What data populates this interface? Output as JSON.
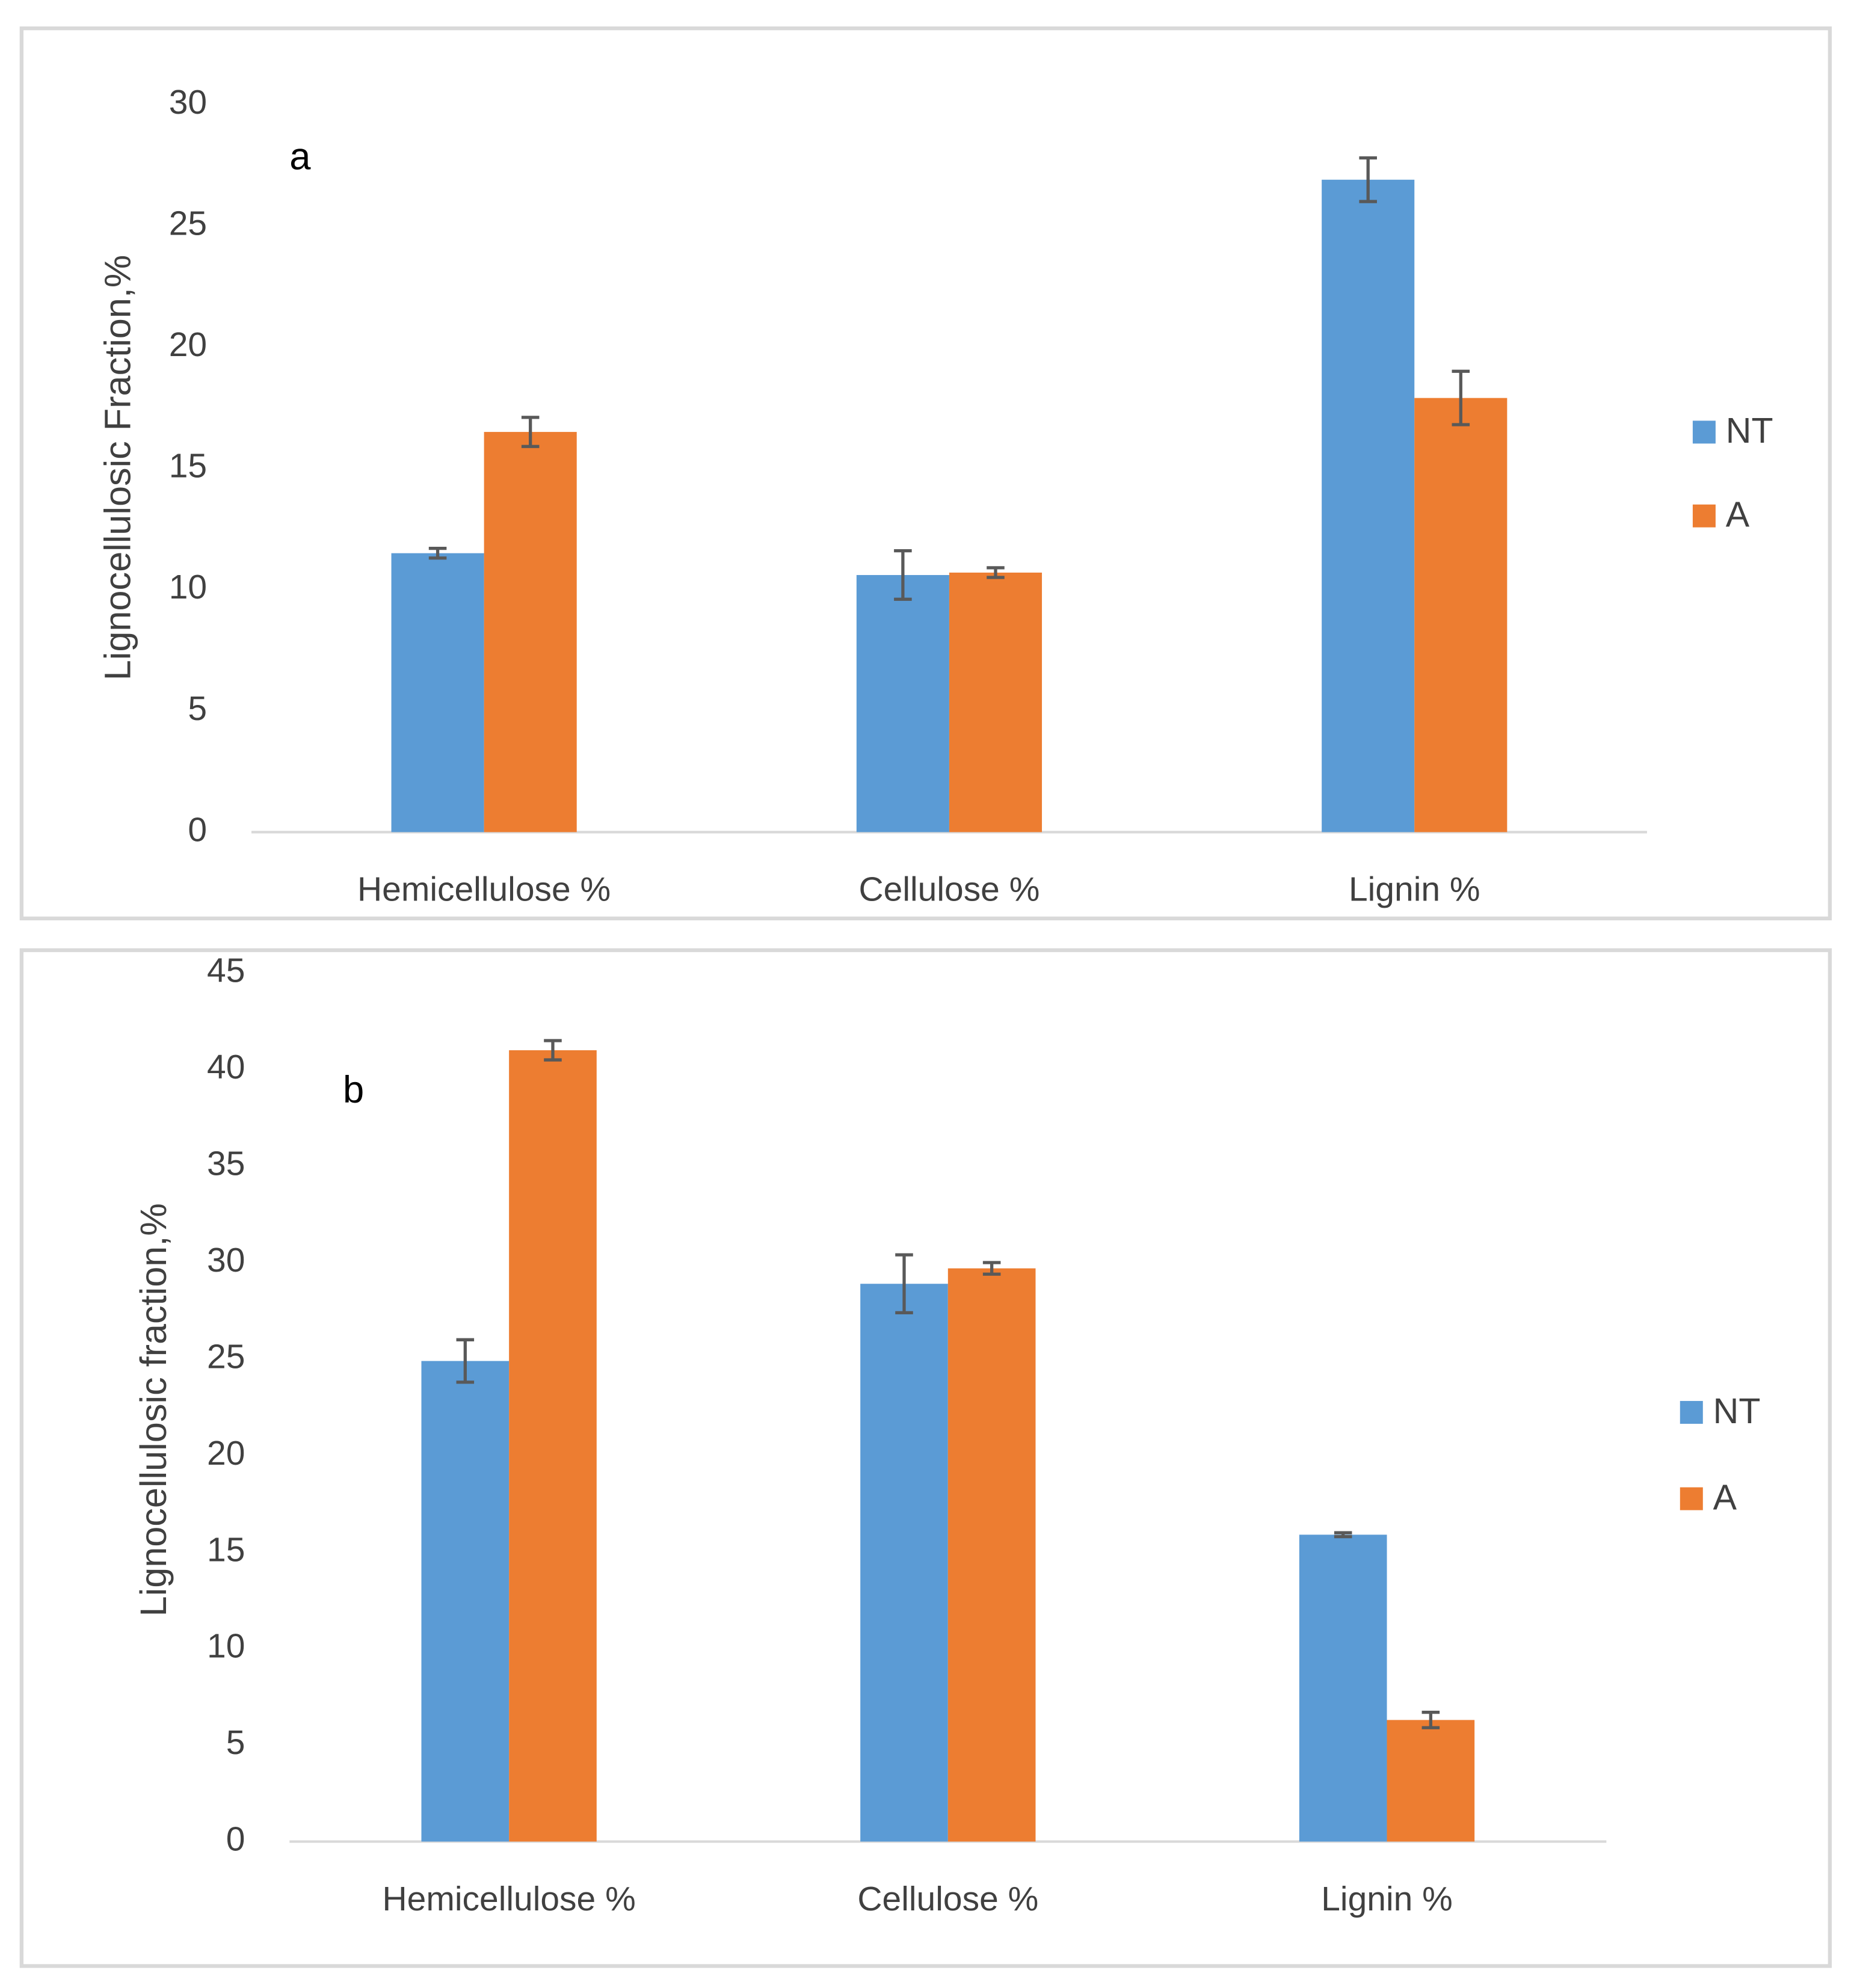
{
  "chart_data": [
    {
      "type": "bar",
      "annotation": "a",
      "y_label": "Lignocellulosic Fraction,%",
      "categories": [
        "Hemicellulose %",
        "Cellulose %",
        "Lignin %"
      ],
      "series": [
        {
          "name": "NT",
          "color": "#5b9bd5",
          "values": [
            11.5,
            10.6,
            26.9
          ],
          "errors": [
            0.2,
            1.0,
            0.9
          ]
        },
        {
          "name": "A",
          "color": "#ed7d31",
          "values": [
            16.5,
            10.7,
            17.9
          ],
          "errors": [
            0.6,
            0.2,
            1.1
          ]
        }
      ],
      "ylim": [
        0,
        30
      ],
      "yticks": [
        0,
        5,
        10,
        15,
        20,
        25,
        30
      ],
      "legend": "right"
    },
    {
      "type": "bar",
      "annotation": "b",
      "y_label": "Lignocellulosic fraction,%",
      "categories": [
        "Hemicellulose %",
        "Cellulose %",
        "Lignin %"
      ],
      "series": [
        {
          "name": "NT",
          "color": "#5b9bd5",
          "values": [
            24.9,
            28.9,
            15.9
          ],
          "errors": [
            1.1,
            1.5,
            0.1
          ]
        },
        {
          "name": "A",
          "color": "#ed7d31",
          "values": [
            41.0,
            29.7,
            6.3
          ],
          "errors": [
            0.5,
            0.3,
            0.4
          ]
        }
      ],
      "ylim": [
        0,
        45
      ],
      "yticks": [
        0,
        5,
        10,
        15,
        20,
        25,
        30,
        35,
        40,
        45
      ],
      "legend": "right"
    }
  ]
}
